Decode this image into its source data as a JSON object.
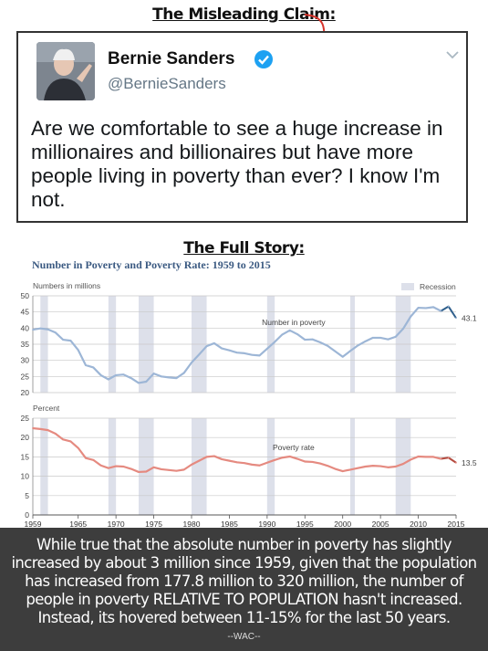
{
  "headings": {
    "claim": "The Misleading Claim:",
    "story": "The Full Story:"
  },
  "tweet": {
    "author": "Bernie Sanders",
    "handle": "@BernieSanders",
    "text": "Are we comfortable to see a huge increase in millionaires and billionaires but have more people living in poverty than ever? I know I'm not."
  },
  "colors": {
    "number_line": "#9db6d6",
    "rate_line": "#e58a80",
    "recession": "#dde0ea",
    "title": "#3b5a82",
    "accent_number": "#2f5f8c",
    "accent_rate": "#b44b40"
  },
  "chart_data": [
    {
      "type": "line",
      "title": "Number in Poverty and Poverty Rate: 1959 to 2015",
      "ylabel": "Numbers in millions",
      "legend": "Recession",
      "legend_position": "top-right",
      "series": [
        {
          "name": "Number in poverty",
          "x": [
            1959,
            1960,
            1961,
            1962,
            1963,
            1964,
            1965,
            1966,
            1967,
            1968,
            1969,
            1970,
            1971,
            1972,
            1973,
            1974,
            1975,
            1976,
            1977,
            1978,
            1979,
            1980,
            1981,
            1982,
            1983,
            1984,
            1985,
            1986,
            1987,
            1988,
            1989,
            1990,
            1991,
            1992,
            1993,
            1994,
            1995,
            1996,
            1997,
            1998,
            1999,
            2000,
            2001,
            2002,
            2003,
            2004,
            2005,
            2006,
            2007,
            2008,
            2009,
            2010,
            2011,
            2012,
            2013,
            2014,
            2015
          ],
          "values": [
            39.5,
            39.9,
            39.6,
            38.6,
            36.4,
            36.1,
            33.2,
            28.5,
            27.8,
            25.4,
            24.1,
            25.4,
            25.6,
            24.5,
            23.0,
            23.4,
            25.9,
            25.0,
            24.7,
            24.5,
            26.1,
            29.3,
            31.8,
            34.4,
            35.3,
            33.7,
            33.1,
            32.4,
            32.2,
            31.7,
            31.5,
            33.6,
            35.7,
            38.0,
            39.3,
            38.1,
            36.4,
            36.5,
            35.6,
            34.5,
            32.8,
            31.1,
            32.9,
            34.6,
            35.9,
            37.0,
            37.0,
            36.5,
            37.3,
            39.8,
            43.6,
            46.3,
            46.2,
            46.5,
            45.3,
            46.7,
            43.1
          ],
          "end_label": "43.1",
          "ylim": [
            20,
            50
          ],
          "yticks": [
            20,
            25,
            30,
            35,
            40,
            45,
            50
          ]
        }
      ]
    },
    {
      "type": "line",
      "ylabel": "Percent",
      "series": [
        {
          "name": "Poverty rate",
          "x": [
            1959,
            1960,
            1961,
            1962,
            1963,
            1964,
            1965,
            1966,
            1967,
            1968,
            1969,
            1970,
            1971,
            1972,
            1973,
            1974,
            1975,
            1976,
            1977,
            1978,
            1979,
            1980,
            1981,
            1982,
            1983,
            1984,
            1985,
            1986,
            1987,
            1988,
            1989,
            1990,
            1991,
            1992,
            1993,
            1994,
            1995,
            1996,
            1997,
            1998,
            1999,
            2000,
            2001,
            2002,
            2003,
            2004,
            2005,
            2006,
            2007,
            2008,
            2009,
            2010,
            2011,
            2012,
            2013,
            2014,
            2015
          ],
          "values": [
            22.4,
            22.2,
            21.9,
            21.0,
            19.5,
            19.0,
            17.3,
            14.7,
            14.2,
            12.8,
            12.1,
            12.6,
            12.5,
            11.9,
            11.1,
            11.2,
            12.3,
            11.8,
            11.6,
            11.4,
            11.7,
            13.0,
            14.0,
            15.0,
            15.2,
            14.4,
            14.0,
            13.6,
            13.4,
            13.0,
            12.8,
            13.5,
            14.2,
            14.8,
            15.1,
            14.5,
            13.8,
            13.7,
            13.3,
            12.7,
            11.9,
            11.3,
            11.7,
            12.1,
            12.5,
            12.7,
            12.6,
            12.3,
            12.5,
            13.2,
            14.3,
            15.1,
            15.0,
            15.0,
            14.5,
            14.8,
            13.5
          ],
          "end_label": "13.5",
          "ylim": [
            0,
            25
          ],
          "yticks": [
            0,
            5,
            10,
            15,
            20,
            25
          ]
        }
      ],
      "xticks": [
        1959,
        1965,
        1970,
        1975,
        1980,
        1985,
        1990,
        1995,
        2000,
        2005,
        2010,
        2015
      ],
      "recessions": [
        [
          1960,
          1961
        ],
        [
          1969,
          1970
        ],
        [
          1973,
          1975
        ],
        [
          1980,
          1982
        ],
        [
          1990,
          1991
        ],
        [
          2001,
          2001
        ],
        [
          2007,
          2009
        ]
      ]
    }
  ],
  "footnote": {
    "text": "While true that the absolute number in poverty has slightly increased by about 3 million since 1959, given that the population has increased from 177.8 million to 320 million, the number of people in poverty RELATIVE TO POPULATION hasn't increased. Instead, its hovered between 11-15% for the last 50 years.",
    "signature": "--WAC--"
  }
}
